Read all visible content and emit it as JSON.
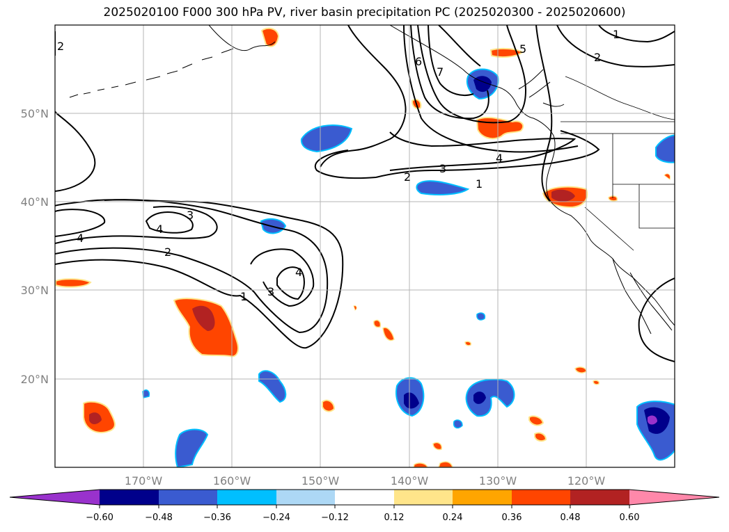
{
  "title": "2025020100 F000 300 hPa PV, river basin precipitation PC (2025020300 - 2025020600)",
  "map": {
    "lon_labels": [
      "170°W",
      "160°W",
      "150°W",
      "140°W",
      "130°W",
      "120°W"
    ],
    "lat_labels": [
      "50°N",
      "40°N",
      "30°N",
      "20°N"
    ],
    "pv_contour_labels": [
      "1",
      "2",
      "3",
      "4",
      "5",
      "6",
      "7"
    ]
  },
  "colorbar": {
    "tick_labels": [
      "−0.60",
      "−0.48",
      "−0.36",
      "−0.24",
      "−0.12",
      "0.12",
      "0.24",
      "0.36",
      "0.48",
      "0.60"
    ],
    "colors": [
      "#9932cc",
      "#00008b",
      "#3a5bd0",
      "#00bfff",
      "#add8f5",
      "#ffffff",
      "#ffe58a",
      "#ffa500",
      "#ff4500",
      "#b22222",
      "#ff88aa"
    ]
  }
}
